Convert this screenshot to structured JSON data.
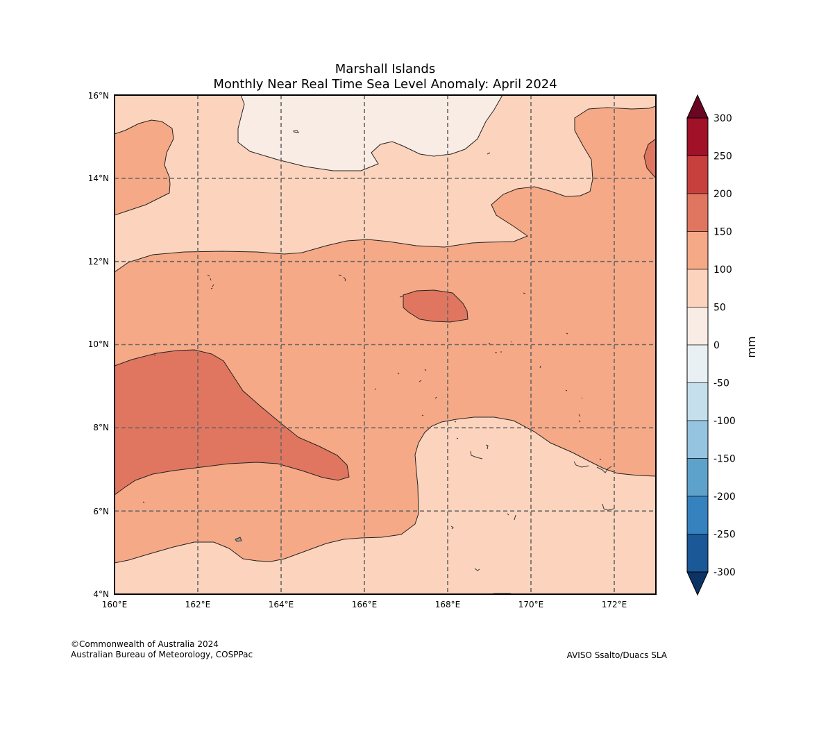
{
  "title": {
    "line1": "Marshall Islands",
    "line2": "Monthly Near Real Time Sea Level Anomaly: April 2024"
  },
  "map": {
    "lon_range": [
      160,
      173
    ],
    "lat_range": [
      4,
      16
    ],
    "grid_lines": true,
    "x_ticks": [
      "160°E",
      "162°E",
      "164°E",
      "166°E",
      "168°E",
      "170°E",
      "172°E"
    ],
    "y_ticks": [
      "4°N",
      "6°N",
      "8°N",
      "10°N",
      "12°N",
      "14°N",
      "16°N"
    ]
  },
  "colorbar": {
    "label": "mm",
    "levels": [
      "300",
      "250",
      "200",
      "150",
      "100",
      "50",
      "0",
      "-50",
      "-100",
      "-150",
      "-200",
      "-250",
      "-300"
    ],
    "colors": [
      "#a11228",
      "#c8403d",
      "#e07660",
      "#f5a987",
      "#fcd4bd",
      "#f9ece5",
      "#e9f0f4",
      "#c5dfec",
      "#94c4df",
      "#5da2cb",
      "#3582bf",
      "#1a5897"
    ],
    "extend_max_color": "#6a0624",
    "extend_min_color": "#0c3365"
  },
  "fill_colors": {
    "range_0_50": "#f9ece5",
    "range_50_100": "#fcd4bd",
    "range_100_150": "#f5a987",
    "range_150_200": "#e07660",
    "range_200_250": "#c8403d"
  },
  "credits": {
    "line1": "©Commonwealth of Australia 2024",
    "line2": "Australian Bureau of Meteorology, COSPPac",
    "source": "AVISO Ssalto/Duacs SLA"
  }
}
